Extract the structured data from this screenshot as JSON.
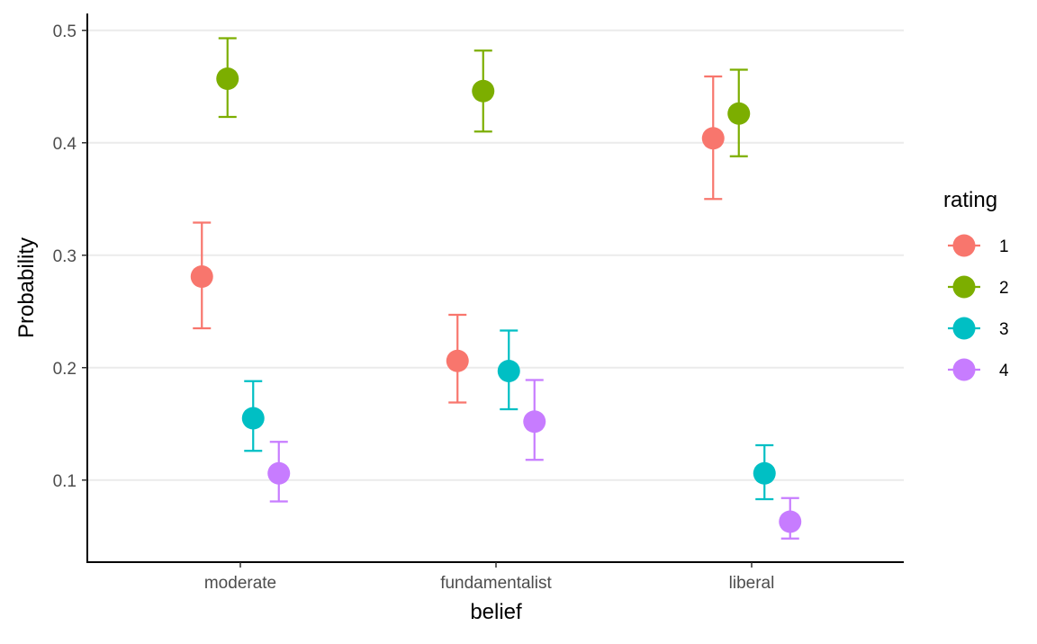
{
  "chart_data": {
    "type": "scatter",
    "subtype": "point-range",
    "xlabel": "belief",
    "ylabel": "Probability",
    "categories": [
      "moderate",
      "fundamentalist",
      "liberal"
    ],
    "ylim": [
      0.027,
      0.515
    ],
    "y_ticks": [
      0.1,
      0.2,
      0.3,
      0.4,
      0.5
    ],
    "y_tick_labels": [
      "0.1",
      "0.2",
      "0.3",
      "0.4",
      "0.5"
    ],
    "grid": {
      "horizontal_major": true,
      "vertical": false
    },
    "legend": {
      "title": "rating",
      "placement": "right"
    },
    "series": [
      {
        "name": "1",
        "color": "#F8766D",
        "values": [
          0.281,
          0.206,
          0.404
        ],
        "lower": [
          0.235,
          0.169,
          0.35
        ],
        "upper": [
          0.329,
          0.247,
          0.459
        ]
      },
      {
        "name": "2",
        "color": "#7CAE00",
        "values": [
          0.457,
          0.446,
          0.426
        ],
        "lower": [
          0.423,
          0.41,
          0.388
        ],
        "upper": [
          0.493,
          0.482,
          0.465
        ]
      },
      {
        "name": "3",
        "color": "#00BFC4",
        "values": [
          0.155,
          0.197,
          0.106
        ],
        "lower": [
          0.126,
          0.163,
          0.083
        ],
        "upper": [
          0.188,
          0.233,
          0.131
        ]
      },
      {
        "name": "4",
        "color": "#C77CFF",
        "values": [
          0.106,
          0.152,
          0.063
        ],
        "lower": [
          0.081,
          0.118,
          0.048
        ],
        "upper": [
          0.134,
          0.189,
          0.084
        ]
      }
    ]
  }
}
